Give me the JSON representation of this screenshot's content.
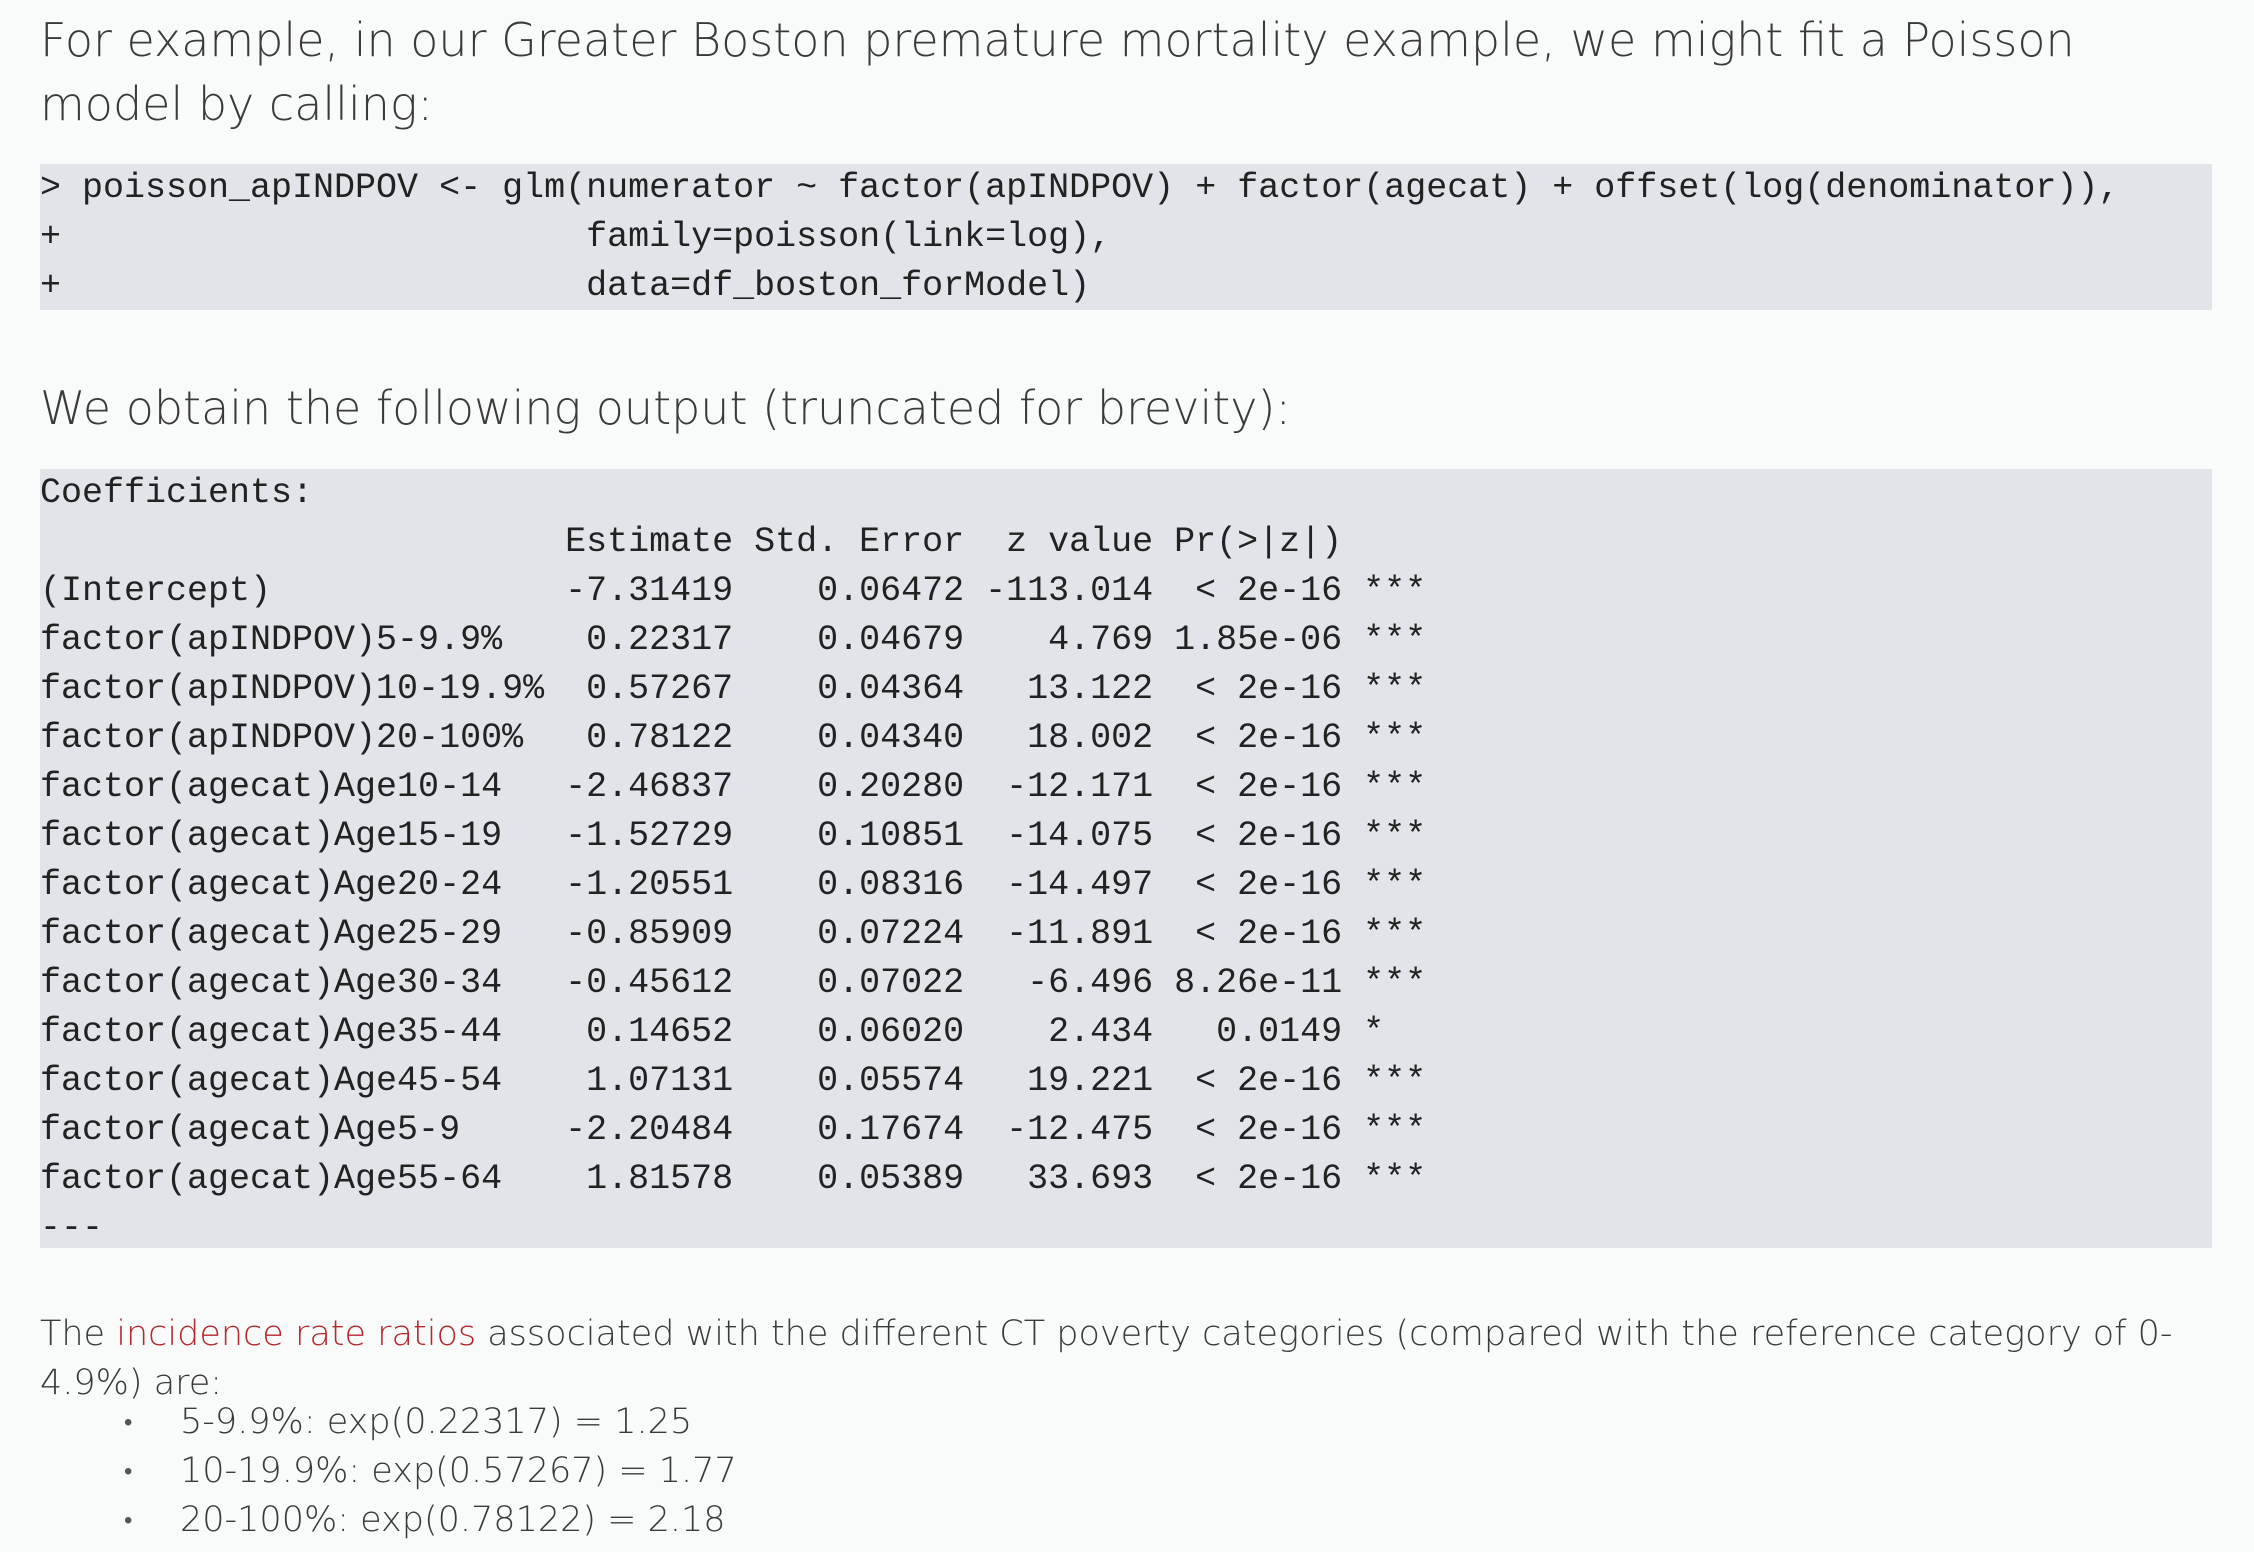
{
  "intro": "For example, in our Greater Boston premature mortality example, we might fit a Poisson model by calling:",
  "code": {
    "lines": [
      "> poisson_apINDPOV <- glm(numerator ~ factor(apINDPOV) + factor(agecat) + offset(log(denominator)),",
      "+                         family=poisson(link=log),",
      "+                         data=df_boston_forModel)"
    ]
  },
  "output_intro": "We obtain the following output (truncated for brevity):",
  "output": {
    "title": "Coefficients:",
    "header": [
      "Estimate",
      "Std. Error",
      "z value",
      "Pr(>|z|)"
    ],
    "rows": [
      [
        "(Intercept)",
        "-7.31419",
        "0.06472",
        "-113.014",
        "< 2e-16",
        "***"
      ],
      [
        "factor(apINDPOV)5-9.9%",
        "0.22317",
        "0.04679",
        "4.769",
        "1.85e-06",
        "***"
      ],
      [
        "factor(apINDPOV)10-19.9%",
        "0.57267",
        "0.04364",
        "13.122",
        "< 2e-16",
        "***"
      ],
      [
        "factor(apINDPOV)20-100%",
        "0.78122",
        "0.04340",
        "18.002",
        "< 2e-16",
        "***"
      ],
      [
        "factor(agecat)Age10-14",
        "-2.46837",
        "0.20280",
        "-12.171",
        "< 2e-16",
        "***"
      ],
      [
        "factor(agecat)Age15-19",
        "-1.52729",
        "0.10851",
        "-14.075",
        "< 2e-16",
        "***"
      ],
      [
        "factor(agecat)Age20-24",
        "-1.20551",
        "0.08316",
        "-14.497",
        "< 2e-16",
        "***"
      ],
      [
        "factor(agecat)Age25-29",
        "-0.85909",
        "0.07224",
        "-11.891",
        "< 2e-16",
        "***"
      ],
      [
        "factor(agecat)Age30-34",
        "-0.45612",
        "0.07022",
        "-6.496",
        "8.26e-11",
        "***"
      ],
      [
        "factor(agecat)Age35-44",
        "0.14652",
        "0.06020",
        "2.434",
        "0.0149",
        "*"
      ],
      [
        "factor(agecat)Age45-54",
        "1.07131",
        "0.05574",
        "19.221",
        "< 2e-16",
        "***"
      ],
      [
        "factor(agecat)Age5-9",
        "-2.20484",
        "0.17674",
        "-12.475",
        "< 2e-16",
        "***"
      ],
      [
        "factor(agecat)Age55-64",
        "1.81578",
        "0.05389",
        "33.693",
        "< 2e-16",
        "***"
      ]
    ],
    "footer": "---"
  },
  "irr_paragraph": {
    "before": "The ",
    "link": "incidence rate ratios",
    "after": " associated with the different CT poverty categories (compared with the reference category of 0-4.9%) are:"
  },
  "irr_list": [
    "5-9.9%: exp(0.22317) = 1.25",
    "10-19.9%: exp(0.57267) = 1.77",
    "20-100%: exp(0.78122) = 2.18"
  ]
}
